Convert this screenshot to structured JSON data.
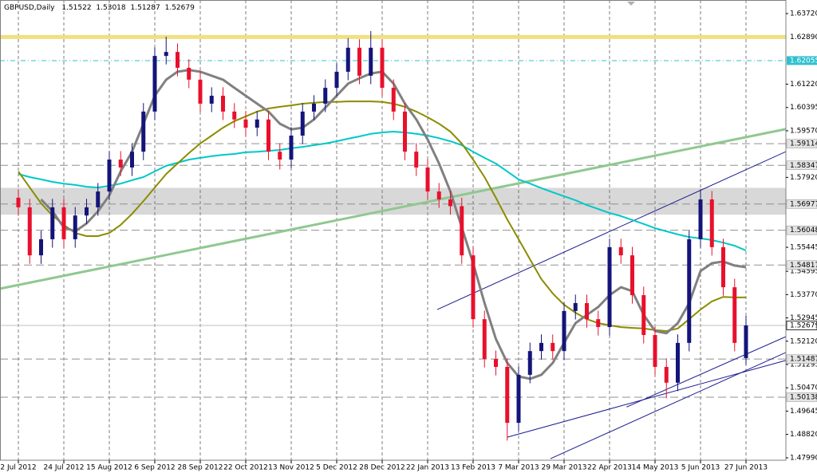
{
  "chart_data": {
    "type": "candlestick",
    "title": "GBPUSD,Daily",
    "categories": [
      "2 Jul 2012",
      null,
      null,
      null,
      "24 Jul 2012",
      null,
      null,
      null,
      "15 Aug 2012",
      null,
      null,
      null,
      "6 Sep 2012",
      null,
      null,
      null,
      "28 Sep 2012",
      null,
      null,
      null,
      "22 Oct 2012",
      null,
      null,
      null,
      "13 Nov 2012",
      null,
      null,
      null,
      "5 Dec 2012",
      null,
      null,
      null,
      "28 Dec 2012",
      null,
      null,
      null,
      "22 Jan 2013",
      null,
      null,
      null,
      "13 Feb 2013",
      null,
      null,
      null,
      "7 Mar 2013",
      null,
      null,
      null,
      "29 Mar 2013",
      null,
      null,
      null,
      "22 Apr 2013",
      null,
      null,
      null,
      "14 May 2013",
      null,
      null,
      null,
      "5 Jun 2013",
      null,
      null,
      null,
      "27 Jun 2013"
    ],
    "open": [
      1.572,
      1.5686,
      1.5516,
      1.5573,
      1.5686,
      1.5573,
      1.5657,
      1.5686,
      1.5742,
      1.5855,
      1.5827,
      1.5883,
      1.6025,
      1.6222,
      1.6236,
      1.618,
      1.6138,
      1.6053,
      1.6081,
      1.6025,
      1.5997,
      1.5968,
      1.5997,
      1.5883,
      1.5855,
      1.594,
      1.6025,
      1.6053,
      1.6109,
      1.6166,
      1.6251,
      1.6152,
      1.6251,
      1.6109,
      1.6025,
      1.5883,
      1.5827,
      1.5742,
      1.5714,
      1.569,
      1.5516,
      1.529,
      1.5149,
      1.5121,
      1.4923,
      1.5093,
      1.5177,
      1.5206,
      1.5177,
      1.5319,
      1.5347,
      1.529,
      1.5262,
      1.5545,
      1.5516,
      1.5375,
      1.5234,
      1.5121,
      1.5065,
      1.5206,
      1.5573,
      1.5714,
      1.5545,
      1.5403,
      1.51522
    ],
    "high": [
      1.575,
      1.5716,
      1.5603,
      1.5716,
      1.5716,
      1.5687,
      1.5716,
      1.5772,
      1.5885,
      1.5885,
      1.5913,
      1.6055,
      1.6252,
      1.629,
      1.6266,
      1.621,
      1.6168,
      1.6111,
      1.6111,
      1.6055,
      1.6027,
      1.6027,
      1.6027,
      1.5913,
      1.597,
      1.6055,
      1.6083,
      1.6139,
      1.6196,
      1.6285,
      1.6281,
      1.631,
      1.6281,
      1.6139,
      1.6055,
      1.5913,
      1.5857,
      1.5772,
      1.5744,
      1.572,
      1.5546,
      1.532,
      1.5179,
      1.5151,
      1.5123,
      1.5207,
      1.5236,
      1.5236,
      1.5349,
      1.5377,
      1.5377,
      1.532,
      1.5575,
      1.5575,
      1.5546,
      1.5405,
      1.5264,
      1.5151,
      1.5236,
      1.5603,
      1.575,
      1.5744,
      1.5575,
      1.5433,
      1.53018
    ],
    "low": [
      1.5656,
      1.5486,
      1.5486,
      1.5543,
      1.5543,
      1.5543,
      1.5627,
      1.5656,
      1.5712,
      1.5797,
      1.5797,
      1.5853,
      1.5995,
      1.6192,
      1.615,
      1.6108,
      1.6023,
      1.6023,
      1.5995,
      1.5967,
      1.5938,
      1.5938,
      1.5853,
      1.582,
      1.5825,
      1.591,
      1.5995,
      1.6023,
      1.6079,
      1.6136,
      1.6122,
      1.6122,
      1.6079,
      1.5995,
      1.5853,
      1.5797,
      1.5712,
      1.5684,
      1.566,
      1.5486,
      1.526,
      1.5119,
      1.5091,
      1.486,
      1.4893,
      1.5063,
      1.5147,
      1.5147,
      1.5147,
      1.5289,
      1.526,
      1.5232,
      1.5232,
      1.5486,
      1.5345,
      1.5204,
      1.5091,
      1.501,
      1.5035,
      1.5176,
      1.5543,
      1.5515,
      1.5373,
      1.5176,
      1.51287
    ],
    "close": [
      1.5686,
      1.5516,
      1.5573,
      1.5686,
      1.5573,
      1.5657,
      1.5686,
      1.5742,
      1.5855,
      1.5827,
      1.5883,
      1.6025,
      1.6222,
      1.6236,
      1.618,
      1.6138,
      1.6053,
      1.6081,
      1.6025,
      1.5997,
      1.5968,
      1.5997,
      1.5883,
      1.5855,
      1.594,
      1.6025,
      1.6053,
      1.6109,
      1.6166,
      1.6251,
      1.6152,
      1.6251,
      1.6109,
      1.6025,
      1.5883,
      1.5827,
      1.5742,
      1.5714,
      1.569,
      1.5516,
      1.529,
      1.5149,
      1.5121,
      1.4923,
      1.5093,
      1.5177,
      1.5206,
      1.5177,
      1.5319,
      1.5347,
      1.529,
      1.5262,
      1.5545,
      1.5516,
      1.5375,
      1.5234,
      1.5121,
      1.5065,
      1.5206,
      1.5573,
      1.5714,
      1.5545,
      1.5403,
      1.5206,
      1.52679
    ],
    "up_color": "#14147a",
    "down_color": "#e8102c",
    "series": [
      {
        "color": "#00c8c8",
        "values": [
          1.5804,
          1.5793,
          1.5785,
          1.5776,
          1.577,
          1.5765,
          1.5759,
          1.5756,
          1.5762,
          1.577,
          1.5782,
          1.5793,
          1.5813,
          1.5833,
          1.5844,
          1.5855,
          1.5861,
          1.5867,
          1.5872,
          1.5875,
          1.5881,
          1.5883,
          1.5886,
          1.5889,
          1.5895,
          1.59,
          1.5906,
          1.5912,
          1.592,
          1.5929,
          1.5937,
          1.5946,
          1.5951,
          1.5954,
          1.5951,
          1.5946,
          1.594,
          1.5931,
          1.592,
          1.5906,
          1.5883,
          1.5861,
          1.5841,
          1.5813,
          1.5785,
          1.577,
          1.5754,
          1.5739,
          1.5725,
          1.5711,
          1.5694,
          1.568,
          1.5666,
          1.5655,
          1.5641,
          1.5627,
          1.5612,
          1.5601,
          1.559,
          1.5581,
          1.5576,
          1.557,
          1.5561,
          1.555,
          1.5533
        ]
      },
      {
        "color": "#8c8c00",
        "values": [
          1.5813,
          1.5756,
          1.57,
          1.5657,
          1.5624,
          1.5595,
          1.5584,
          1.5584,
          1.5595,
          1.5624,
          1.5663,
          1.5708,
          1.5756,
          1.5804,
          1.5841,
          1.5878,
          1.5912,
          1.594,
          1.5968,
          1.5991,
          1.6008,
          1.6025,
          1.6036,
          1.6042,
          1.6047,
          1.6053,
          1.6056,
          1.6059,
          1.6059,
          1.6061,
          1.6061,
          1.6061,
          1.6059,
          1.6053,
          1.6042,
          1.6025,
          1.6005,
          1.5982,
          1.5954,
          1.5912,
          1.5855,
          1.5793,
          1.572,
          1.5643,
          1.5573,
          1.5502,
          1.5432,
          1.5381,
          1.5341,
          1.5313,
          1.529,
          1.5276,
          1.5268,
          1.5262,
          1.5259,
          1.5257,
          1.5251,
          1.5248,
          1.5257,
          1.529,
          1.5324,
          1.5353,
          1.5369,
          1.5367,
          1.5367
        ]
      },
      {
        "color": "#808080",
        "values": [
          null,
          null,
          1.5714,
          1.5672,
          1.5615,
          1.5601,
          1.5629,
          1.5672,
          1.5728,
          1.5813,
          1.5883,
          1.5982,
          1.6081,
          1.6138,
          1.6166,
          1.6172,
          1.6166,
          1.6152,
          1.6138,
          1.6109,
          1.6081,
          1.6053,
          1.6025,
          1.5982,
          1.5962,
          1.5968,
          1.5997,
          1.6039,
          1.6081,
          1.6124,
          1.6143,
          1.616,
          1.6166,
          1.6124,
          1.6053,
          1.5997,
          1.5926,
          1.5841,
          1.5742,
          1.5615,
          1.5488,
          1.5347,
          1.522,
          1.5135,
          1.5087,
          1.5079,
          1.5093,
          1.5135,
          1.5206,
          1.5276,
          1.5305,
          1.5333,
          1.5375,
          1.5403,
          1.5389,
          1.5305,
          1.5248,
          1.524,
          1.5276,
          1.5347,
          1.546,
          1.5488,
          1.5494,
          1.548,
          1.5474
        ]
      }
    ],
    "ylim": [
      1.4799,
      1.6372
    ],
    "yticks": [
      {
        "value": 1.6372,
        "label": "1.63720"
      },
      {
        "value": 1.6122,
        "label": "1.61220"
      },
      1.60395,
      {
        "value": 1.5957,
        "label": "1.59570"
      },
      {
        "value": 1.5792,
        "label": "1.57920"
      },
      1.55445,
      1.54595,
      {
        "value": 1.5377,
        "label": "1.53770"
      },
      1.52945,
      {
        "value": 1.5212,
        "label": "1.52120"
      },
      1.51295,
      {
        "value": 1.5047,
        "label": "1.50470"
      },
      1.49645,
      {
        "value": 1.4882,
        "label": "1.48820"
      },
      {
        "value": 1.4799,
        "label": "1.47990"
      }
    ],
    "grid": true,
    "zone": [
      1.566,
      1.5755
    ],
    "levels": [
      {
        "value": 1.6289,
        "label": "1.62890",
        "color": "#f0e080",
        "style": "solid"
      },
      {
        "value": 1.62055,
        "color": "#30c0d0",
        "style": "dashdot"
      },
      {
        "value": 1.59114,
        "color": "#909090",
        "style": "dashed"
      },
      {
        "value": 1.58347,
        "color": "#909090",
        "style": "dashed"
      },
      {
        "value": 1.56977,
        "color": "#909090",
        "style": "dashed"
      },
      {
        "value": 1.56048,
        "color": "#909090",
        "style": "dashed"
      },
      {
        "value": 1.54817,
        "color": "#909090",
        "style": "dashed"
      },
      {
        "value": 1.52679,
        "color": "#c0c0c0",
        "style": "current"
      },
      {
        "value": 1.51487,
        "color": "#909090",
        "style": "dashed"
      },
      {
        "value": 1.50138,
        "color": "#909090",
        "style": "dashed"
      }
    ],
    "trendlines": [
      {
        "color": "#90c890",
        "points": [
          [
            -1.6,
            1.5398
          ],
          [
            67.5,
            1.5963
          ]
        ]
      },
      {
        "color": "#1c1c90",
        "points": [
          [
            36.84,
            1.5324
          ],
          [
            67.5,
            1.5883
          ]
        ]
      },
      {
        "color": "#1c1c90",
        "points": [
          [
            43.0,
            1.4872
          ],
          [
            67.5,
            1.5144
          ]
        ]
      },
      {
        "color": "#1c1c90",
        "points": [
          [
            46.8,
            1.4796
          ],
          [
            67.5,
            1.5172
          ]
        ]
      },
      {
        "color": "#1c1c90",
        "points": [
          [
            53.5,
            1.4979
          ],
          [
            67.5,
            1.5228
          ]
        ]
      }
    ]
  }
}
